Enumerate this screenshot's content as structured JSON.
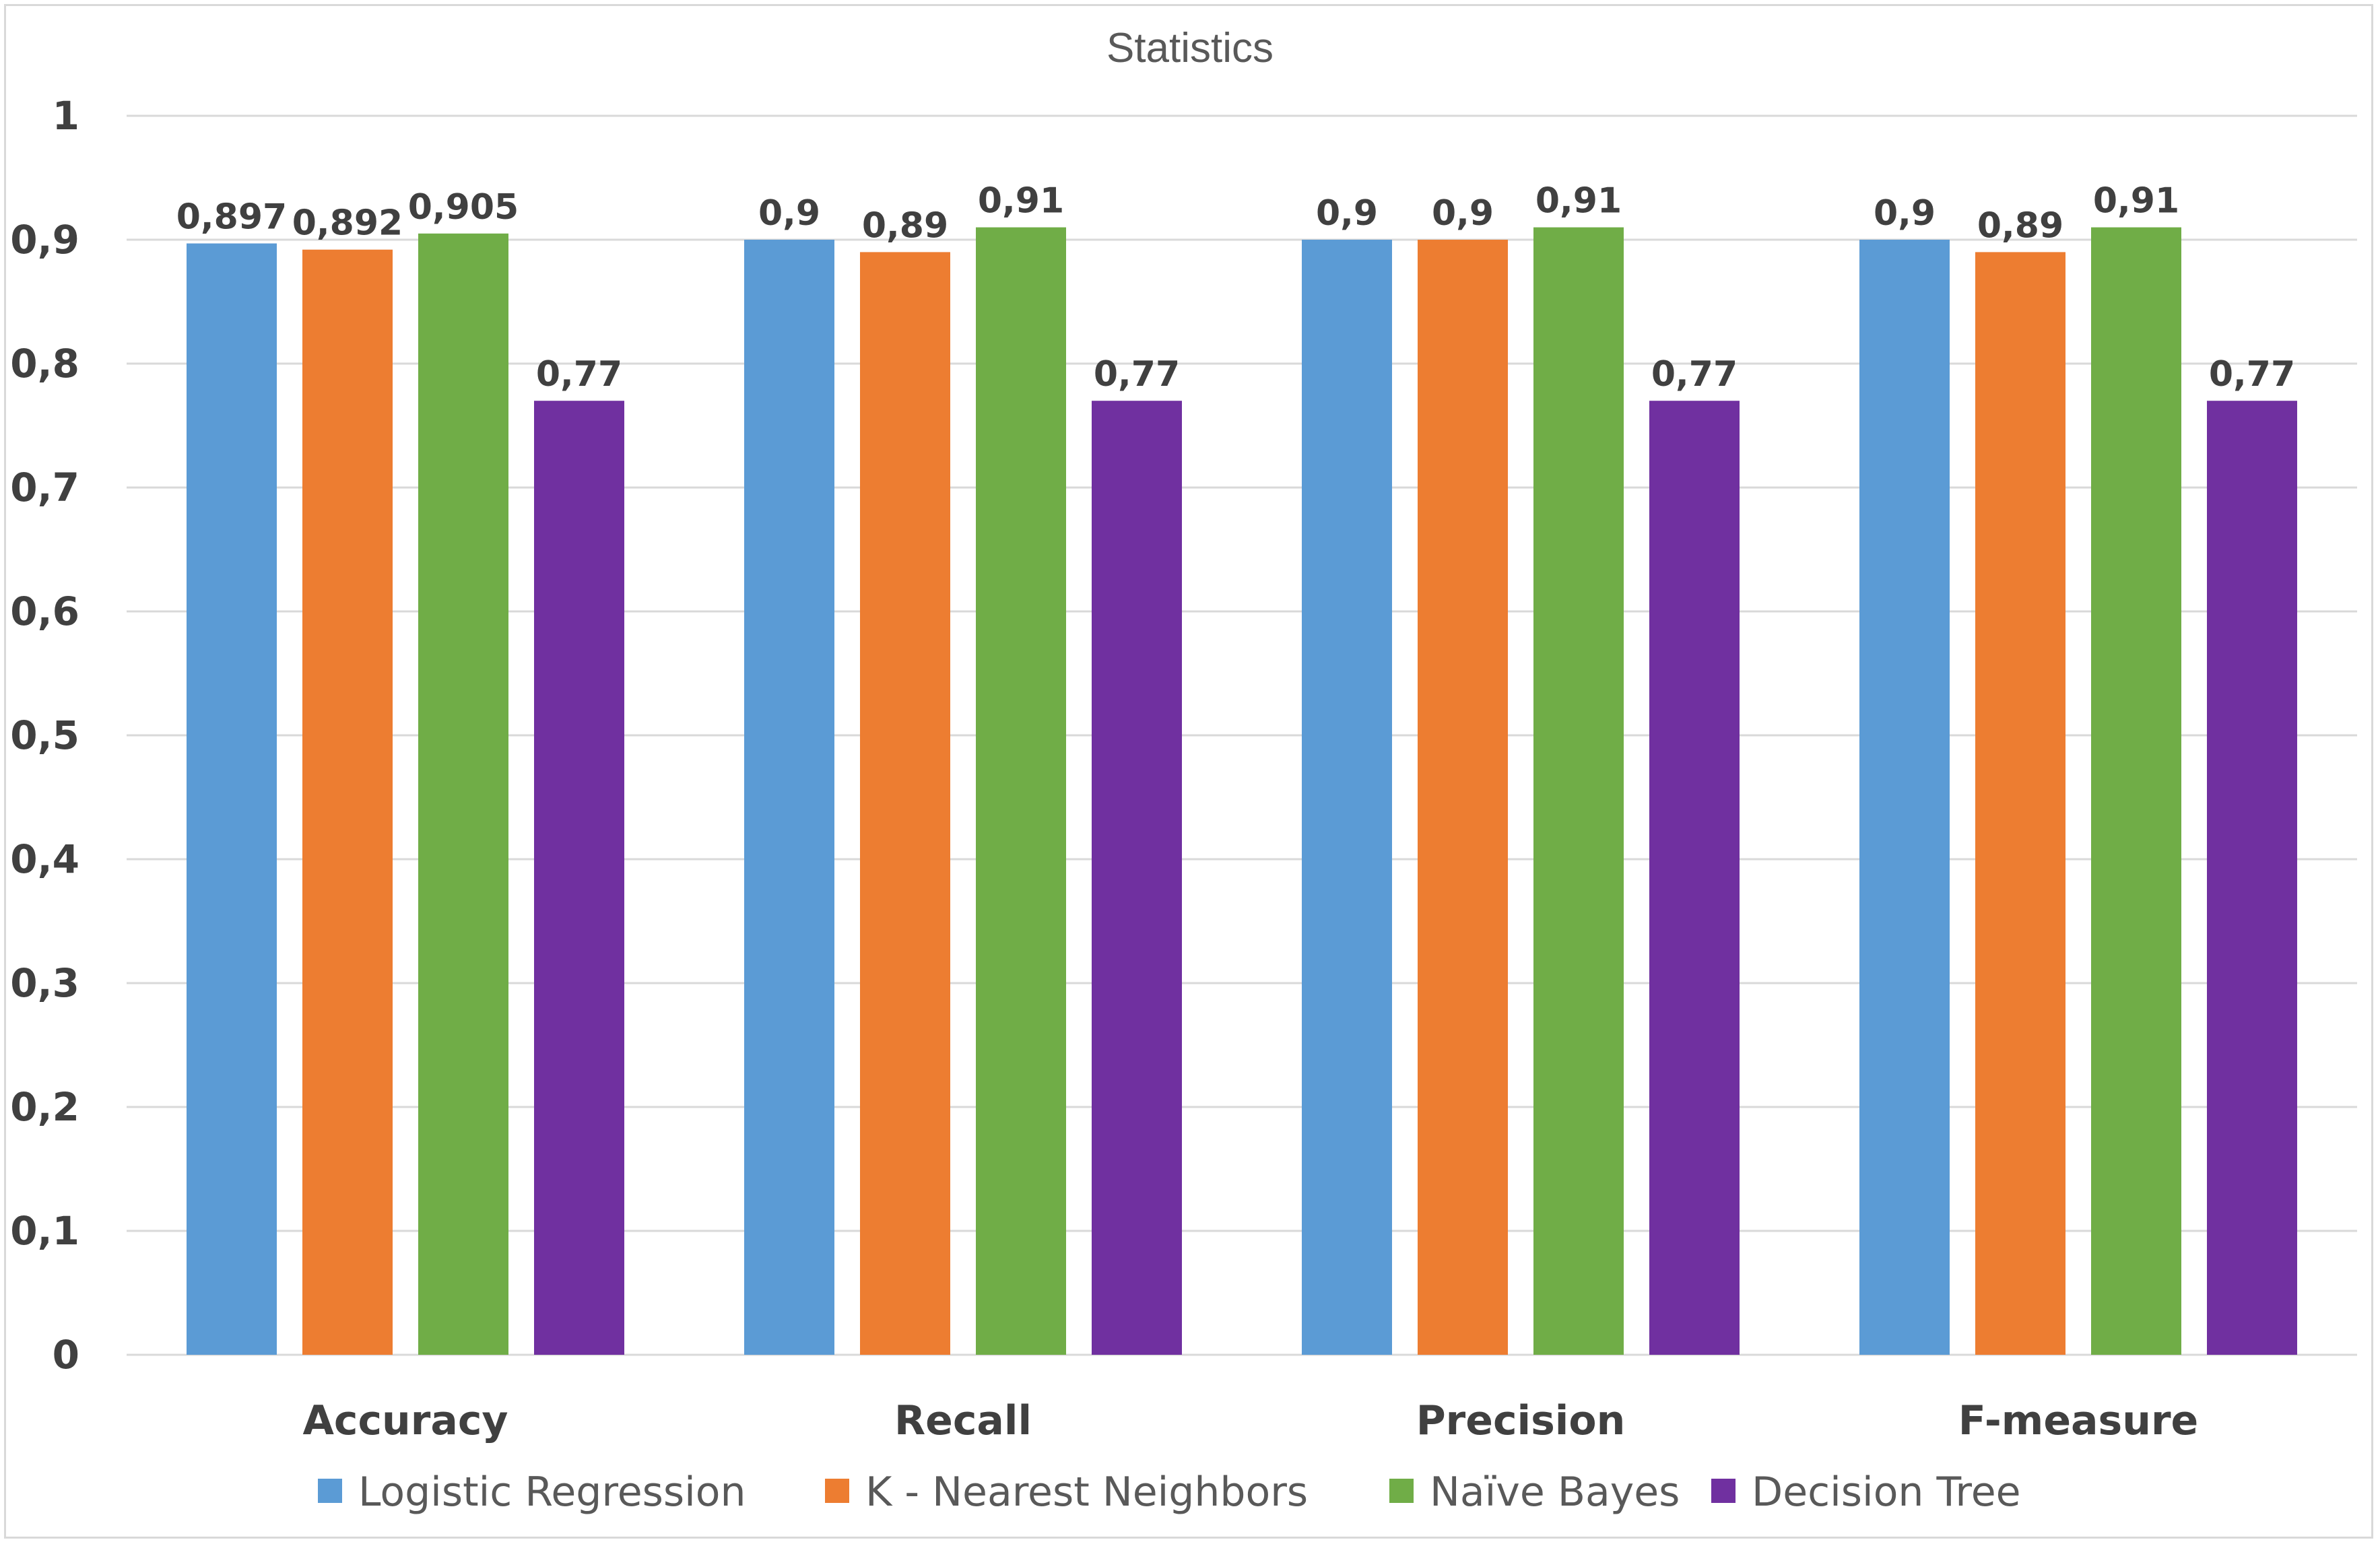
{
  "chart_data": {
    "type": "bar",
    "title": "Statistics",
    "categories": [
      "Accuracy",
      "Recall",
      "Precision",
      "F-measure"
    ],
    "series": [
      {
        "name": "Logistic Regression",
        "color": "#5b9bd5",
        "values": [
          0.897,
          0.9,
          0.9,
          0.9
        ],
        "labels": [
          "0,897",
          "0,9",
          "0,9",
          "0,9"
        ]
      },
      {
        "name": "K - Nearest Neighbors",
        "color": "#ed7d31",
        "values": [
          0.892,
          0.89,
          0.9,
          0.89
        ],
        "labels": [
          "0,892",
          "0,89",
          "0,9",
          "0,89"
        ]
      },
      {
        "name": "Naïve Bayes",
        "color": "#70ad47",
        "values": [
          0.905,
          0.91,
          0.91,
          0.91
        ],
        "labels": [
          "0,905",
          "0,91",
          "0,91",
          "0,91"
        ]
      },
      {
        "name": "Decision Tree",
        "color": "#7030a0",
        "values": [
          0.77,
          0.77,
          0.77,
          0.77
        ],
        "labels": [
          "0,77",
          "0,77",
          "0,77",
          "0,77"
        ]
      }
    ],
    "ylim": [
      0,
      1
    ],
    "yticks": [
      0,
      0.1,
      0.2,
      0.3,
      0.4,
      0.5,
      0.6,
      0.7,
      0.8,
      0.9,
      1
    ],
    "ytick_labels": [
      "0",
      "0,1",
      "0,2",
      "0,3",
      "0,4",
      "0,5",
      "0,6",
      "0,7",
      "0,8",
      "0,9",
      "1"
    ],
    "xlabel": "",
    "ylabel": "",
    "grid": true,
    "legend_position": "bottom"
  }
}
